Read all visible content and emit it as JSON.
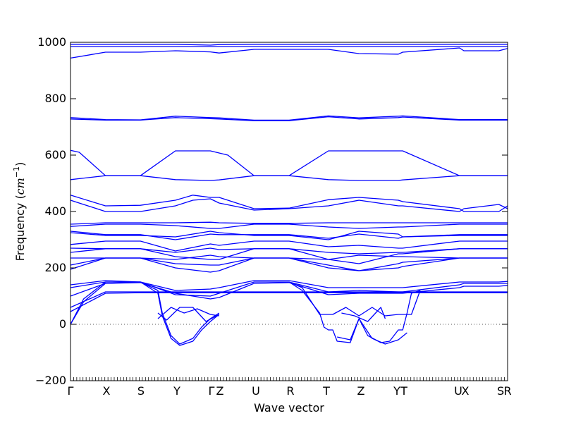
{
  "chart_data": {
    "type": "line",
    "title": "",
    "xlabel": "Wave vector",
    "ylabel": "Frequency ($cm^{-1}$)",
    "ylabel_parts": {
      "prefix": "Frequency (",
      "base": "cm",
      "exponent": "−1",
      "suffix": ")"
    },
    "ylim": [
      -200,
      1000
    ],
    "yticks": [
      -200,
      0,
      200,
      400,
      600,
      800,
      1000
    ],
    "ytick_labels": [
      "−200",
      "0",
      "200",
      "400",
      "600",
      "800",
      "1000"
    ],
    "grid": false,
    "legend": null,
    "zero_line": true,
    "line_color": "#0000ff",
    "high_symmetry_points": [
      {
        "label": "Γ",
        "pos": 0.0
      },
      {
        "label": "X",
        "pos": 0.0823
      },
      {
        "label": "S",
        "pos": 0.1613
      },
      {
        "label": "Y",
        "pos": 0.2435
      },
      {
        "label": "Γ",
        "pos": 0.3226
      },
      {
        "label": "Z",
        "pos": 0.3419
      },
      {
        "label": "U",
        "pos": 0.4242
      },
      {
        "label": "R",
        "pos": 0.5032
      },
      {
        "label": "T",
        "pos": 0.5855
      },
      {
        "label": "Z",
        "pos": 0.6645
      },
      {
        "label": "Y",
        "pos": 0.7468
      },
      {
        "label": "T",
        "pos": 0.7629
      },
      {
        "label": "U",
        "pos": 0.8871
      },
      {
        "label": "X",
        "pos": 0.9032
      },
      {
        "label": "S",
        "pos": 0.9839
      },
      {
        "label": "R",
        "pos": 1.0
      }
    ],
    "series": [
      {
        "x": [
          0,
          0.08,
          0.16,
          0.24,
          0.32,
          0.34,
          0.42,
          0.5,
          0.59,
          0.66,
          0.75,
          0.76,
          0.89,
          0.9,
          0.98,
          1
        ],
        "values": [
          993,
          993,
          993,
          993,
          990,
          992,
          993,
          993,
          993,
          993,
          993,
          993,
          993,
          993,
          993,
          993
        ]
      },
      {
        "x": [
          0,
          0.08,
          0.16,
          0.24,
          0.32,
          0.34,
          0.42,
          0.5,
          0.59,
          0.66,
          0.75,
          0.76,
          0.89,
          0.9,
          0.98,
          1
        ],
        "values": [
          985,
          985,
          985,
          985,
          985,
          985,
          985,
          985,
          985,
          985,
          985,
          985,
          985,
          985,
          985,
          985
        ]
      },
      {
        "x": [
          0,
          0.08,
          0.16,
          0.24,
          0.32,
          0.34,
          0.42,
          0.5,
          0.59,
          0.66,
          0.75,
          0.76,
          0.89,
          0.9,
          0.98,
          1
        ],
        "values": [
          944,
          965,
          965,
          970,
          966,
          962,
          975,
          975,
          975,
          960,
          958,
          965,
          980,
          970,
          970,
          978
        ]
      },
      {
        "x": [
          0,
          0.08,
          0.16,
          0.24,
          0.32,
          0.34,
          0.42,
          0.5,
          0.59,
          0.66,
          0.75,
          0.76,
          0.89,
          0.9,
          0.98,
          1
        ],
        "values": [
          728,
          724,
          724,
          733,
          729,
          728,
          722,
          722,
          736,
          728,
          733,
          735,
          724,
          724,
          724,
          724
        ]
      },
      {
        "x": [
          0,
          0.08,
          0.16,
          0.24,
          0.32,
          0.34,
          0.42,
          0.5,
          0.59,
          0.66,
          0.75,
          0.76,
          0.89,
          0.9,
          0.98,
          1
        ],
        "values": [
          733,
          726,
          725,
          738,
          733,
          732,
          724,
          724,
          739,
          732,
          738,
          739,
          726,
          726,
          726,
          726
        ]
      },
      {
        "x": [
          0,
          0.02,
          0.08,
          0.16,
          0.24,
          0.32,
          0.36,
          0.42,
          0.5,
          0.59,
          0.66,
          0.75,
          0.76,
          0.89,
          0.9,
          0.98,
          1
        ],
        "values": [
          617,
          610,
          527,
          527,
          615,
          615,
          600,
          527,
          527,
          615,
          615,
          615,
          615,
          527,
          527,
          527,
          527
        ]
      },
      {
        "x": [
          0,
          0.08,
          0.16,
          0.24,
          0.32,
          0.34,
          0.42,
          0.5,
          0.59,
          0.66,
          0.75,
          0.76,
          0.89,
          0.9,
          0.98,
          1
        ],
        "values": [
          513,
          527,
          527,
          513,
          510,
          512,
          527,
          527,
          513,
          510,
          510,
          512,
          527,
          527,
          527,
          527
        ]
      },
      {
        "x": [
          0,
          0.08,
          0.16,
          0.24,
          0.28,
          0.32,
          0.34,
          0.42,
          0.5,
          0.59,
          0.66,
          0.75,
          0.76,
          0.89,
          0.9,
          0.98,
          1
        ],
        "values": [
          458,
          420,
          422,
          440,
          458,
          450,
          450,
          410,
          412,
          442,
          450,
          440,
          435,
          410,
          400,
          400,
          420
        ]
      },
      {
        "x": [
          0,
          0.08,
          0.16,
          0.24,
          0.28,
          0.32,
          0.34,
          0.42,
          0.5,
          0.59,
          0.66,
          0.75,
          0.76,
          0.89,
          0.9,
          0.98,
          1
        ],
        "values": [
          440,
          400,
          400,
          420,
          440,
          445,
          430,
          405,
          410,
          420,
          440,
          420,
          420,
          400,
          410,
          425,
          410
        ]
      },
      {
        "x": [
          0,
          0.08,
          0.16,
          0.24,
          0.32,
          0.34,
          0.42,
          0.5,
          0.59,
          0.66,
          0.75,
          0.76,
          0.89,
          0.9,
          0.98,
          1
        ],
        "values": [
          355,
          360,
          360,
          360,
          362,
          360,
          358,
          358,
          360,
          360,
          360,
          360,
          360,
          360,
          360,
          360
        ]
      },
      {
        "x": [
          0,
          0.08,
          0.16,
          0.24,
          0.32,
          0.34,
          0.42,
          0.5,
          0.59,
          0.66,
          0.75,
          0.76,
          0.89,
          0.9,
          0.98,
          1
        ],
        "values": [
          347,
          355,
          355,
          350,
          340,
          340,
          355,
          355,
          345,
          340,
          345,
          345,
          355,
          355,
          355,
          355
        ]
      },
      {
        "x": [
          0,
          0.08,
          0.16,
          0.24,
          0.32,
          0.34,
          0.42,
          0.5,
          0.59,
          0.66,
          0.75,
          0.76,
          0.89,
          0.9,
          0.98,
          1
        ],
        "values": [
          330,
          318,
          318,
          300,
          320,
          318,
          318,
          318,
          305,
          320,
          305,
          310,
          318,
          318,
          318,
          318
        ]
      },
      {
        "x": [
          0,
          0.08,
          0.16,
          0.24,
          0.32,
          0.34,
          0.42,
          0.5,
          0.59,
          0.66,
          0.75,
          0.76,
          0.89,
          0.9,
          0.98,
          1
        ],
        "values": [
          325,
          315,
          315,
          310,
          330,
          325,
          315,
          315,
          300,
          330,
          320,
          310,
          315,
          315,
          315,
          315
        ]
      },
      {
        "x": [
          0,
          0.08,
          0.16,
          0.24,
          0.32,
          0.34,
          0.42,
          0.5,
          0.59,
          0.66,
          0.75,
          0.76,
          0.89,
          0.9,
          0.98,
          1
        ],
        "values": [
          283,
          295,
          295,
          260,
          285,
          280,
          295,
          295,
          275,
          280,
          270,
          270,
          295,
          295,
          295,
          295
        ]
      },
      {
        "x": [
          0,
          0.08,
          0.16,
          0.24,
          0.32,
          0.34,
          0.42,
          0.5,
          0.59,
          0.66,
          0.75,
          0.76,
          0.89,
          0.9,
          0.98,
          1
        ],
        "values": [
          270,
          268,
          268,
          255,
          270,
          265,
          268,
          268,
          255,
          250,
          255,
          255,
          268,
          268,
          268,
          268
        ]
      },
      {
        "x": [
          0,
          0.08,
          0.16,
          0.24,
          0.32,
          0.34,
          0.42,
          0.5,
          0.59,
          0.66,
          0.75,
          0.76,
          0.89,
          0.9,
          0.98,
          1
        ],
        "values": [
          255,
          268,
          268,
          240,
          230,
          230,
          268,
          268,
          230,
          215,
          250,
          250,
          268,
          268,
          268,
          268
        ]
      },
      {
        "x": [
          0,
          0.08,
          0.16,
          0.24,
          0.32,
          0.34,
          0.42,
          0.5,
          0.59,
          0.66,
          0.75,
          0.76,
          0.89,
          0.9,
          0.98,
          1
        ],
        "values": [
          235,
          235,
          235,
          230,
          245,
          240,
          235,
          235,
          230,
          245,
          240,
          240,
          235,
          235,
          235,
          235
        ]
      },
      {
        "x": [
          0,
          0.08,
          0.16,
          0.24,
          0.32,
          0.34,
          0.42,
          0.5,
          0.59,
          0.66,
          0.75,
          0.76,
          0.89,
          0.9,
          0.98,
          1
        ],
        "values": [
          210,
          235,
          235,
          215,
          210,
          210,
          235,
          235,
          210,
          190,
          215,
          220,
          235,
          235,
          235,
          235
        ]
      },
      {
        "x": [
          0,
          0.08,
          0.16,
          0.24,
          0.32,
          0.34,
          0.42,
          0.5,
          0.59,
          0.66,
          0.75,
          0.76,
          0.89,
          0.9,
          0.98,
          1
        ],
        "values": [
          195,
          235,
          235,
          200,
          185,
          190,
          235,
          235,
          200,
          190,
          200,
          205,
          235,
          235,
          235,
          235
        ]
      },
      {
        "x": [
          0,
          0.08,
          0.16,
          0.24,
          0.32,
          0.34,
          0.42,
          0.5,
          0.59,
          0.66,
          0.75,
          0.76,
          0.89,
          0.9,
          0.98,
          1
        ],
        "values": [
          140,
          155,
          150,
          120,
          125,
          130,
          155,
          155,
          130,
          130,
          130,
          130,
          150,
          150,
          150,
          152
        ]
      },
      {
        "x": [
          0,
          0.08,
          0.16,
          0.24,
          0.32,
          0.34,
          0.42,
          0.5,
          0.59,
          0.66,
          0.75,
          0.76,
          0.89,
          0.9,
          0.98,
          1
        ],
        "values": [
          130,
          150,
          150,
          105,
          100,
          110,
          150,
          150,
          115,
          120,
          115,
          115,
          140,
          145,
          145,
          145
        ]
      },
      {
        "x": [
          0,
          0.08,
          0.16,
          0.24,
          0.32,
          0.34,
          0.42,
          0.5,
          0.59,
          0.66,
          0.75,
          0.76,
          0.89,
          0.9,
          0.98,
          1
        ],
        "values": [
          100,
          145,
          148,
          110,
          90,
          95,
          145,
          148,
          105,
          110,
          110,
          110,
          130,
          135,
          135,
          138
        ]
      },
      {
        "x": [
          0,
          0.08,
          0.16,
          0.24,
          0.32,
          0.34,
          0.42,
          0.5,
          0.59,
          0.66,
          0.75,
          0.76,
          0.89,
          0.9,
          0.98,
          1
        ],
        "values": [
          60,
          115,
          115,
          115,
          115,
          115,
          115,
          115,
          115,
          115,
          115,
          115,
          115,
          115,
          115,
          115
        ]
      },
      {
        "x": [
          0,
          0.08,
          0.16,
          0.24,
          0.32,
          0.34,
          0.42,
          0.5,
          0.59,
          0.66,
          0.75,
          0.76,
          0.89,
          0.9,
          0.98,
          1
        ],
        "values": [
          45,
          110,
          112,
          112,
          112,
          112,
          112,
          112,
          112,
          112,
          112,
          112,
          112,
          112,
          112,
          112
        ]
      },
      {
        "x": [
          0,
          0.03,
          0.08,
          0.16,
          0.2,
          0.21,
          0.23,
          0.25,
          0.28,
          0.3,
          0.32,
          0.34
        ],
        "values": [
          0,
          80,
          145,
          150,
          120,
          40,
          -40,
          -70,
          -50,
          -10,
          20,
          40
        ]
      },
      {
        "x": [
          0,
          0.03,
          0.08,
          0.16,
          0.2,
          0.21,
          0.23,
          0.25,
          0.28,
          0.3,
          0.32,
          0.34
        ],
        "values": [
          0,
          90,
          150,
          150,
          110,
          30,
          -50,
          -75,
          -60,
          -20,
          10,
          35
        ]
      },
      {
        "x": [
          0.2,
          0.22,
          0.25,
          0.28,
          0.31,
          0.34
        ],
        "values": [
          40,
          15,
          60,
          60,
          10,
          35
        ]
      },
      {
        "x": [
          0.2,
          0.23,
          0.26,
          0.29,
          0.32,
          0.34
        ],
        "values": [
          20,
          60,
          40,
          55,
          35,
          30
        ]
      },
      {
        "x": [
          0.5,
          0.53,
          0.57,
          0.58,
          0.59,
          0.6,
          0.61,
          0.64,
          0.66,
          0.68,
          0.71,
          0.73,
          0.75,
          0.76,
          0.77,
          0.78,
          0.8
        ],
        "values": [
          150,
          120,
          40,
          -10,
          -20,
          -20,
          -60,
          -65,
          20,
          -40,
          -65,
          -60,
          -20,
          -20,
          40,
          110,
          120
        ]
      },
      {
        "x": [
          0.5,
          0.53,
          0.57,
          0.6,
          0.63,
          0.66,
          0.69,
          0.72,
          0.75,
          0.78,
          0.8
        ],
        "values": [
          150,
          130,
          35,
          35,
          60,
          30,
          60,
          30,
          35,
          35,
          120
        ]
      },
      {
        "x": [
          0.61,
          0.64,
          0.66,
          0.69,
          0.72,
          0.75,
          0.77
        ],
        "values": [
          -45,
          -55,
          20,
          -50,
          -70,
          -55,
          -30
        ]
      },
      {
        "x": [
          0.62,
          0.65,
          0.68,
          0.71,
          0.72
        ],
        "values": [
          40,
          30,
          10,
          60,
          20
        ]
      }
    ]
  }
}
